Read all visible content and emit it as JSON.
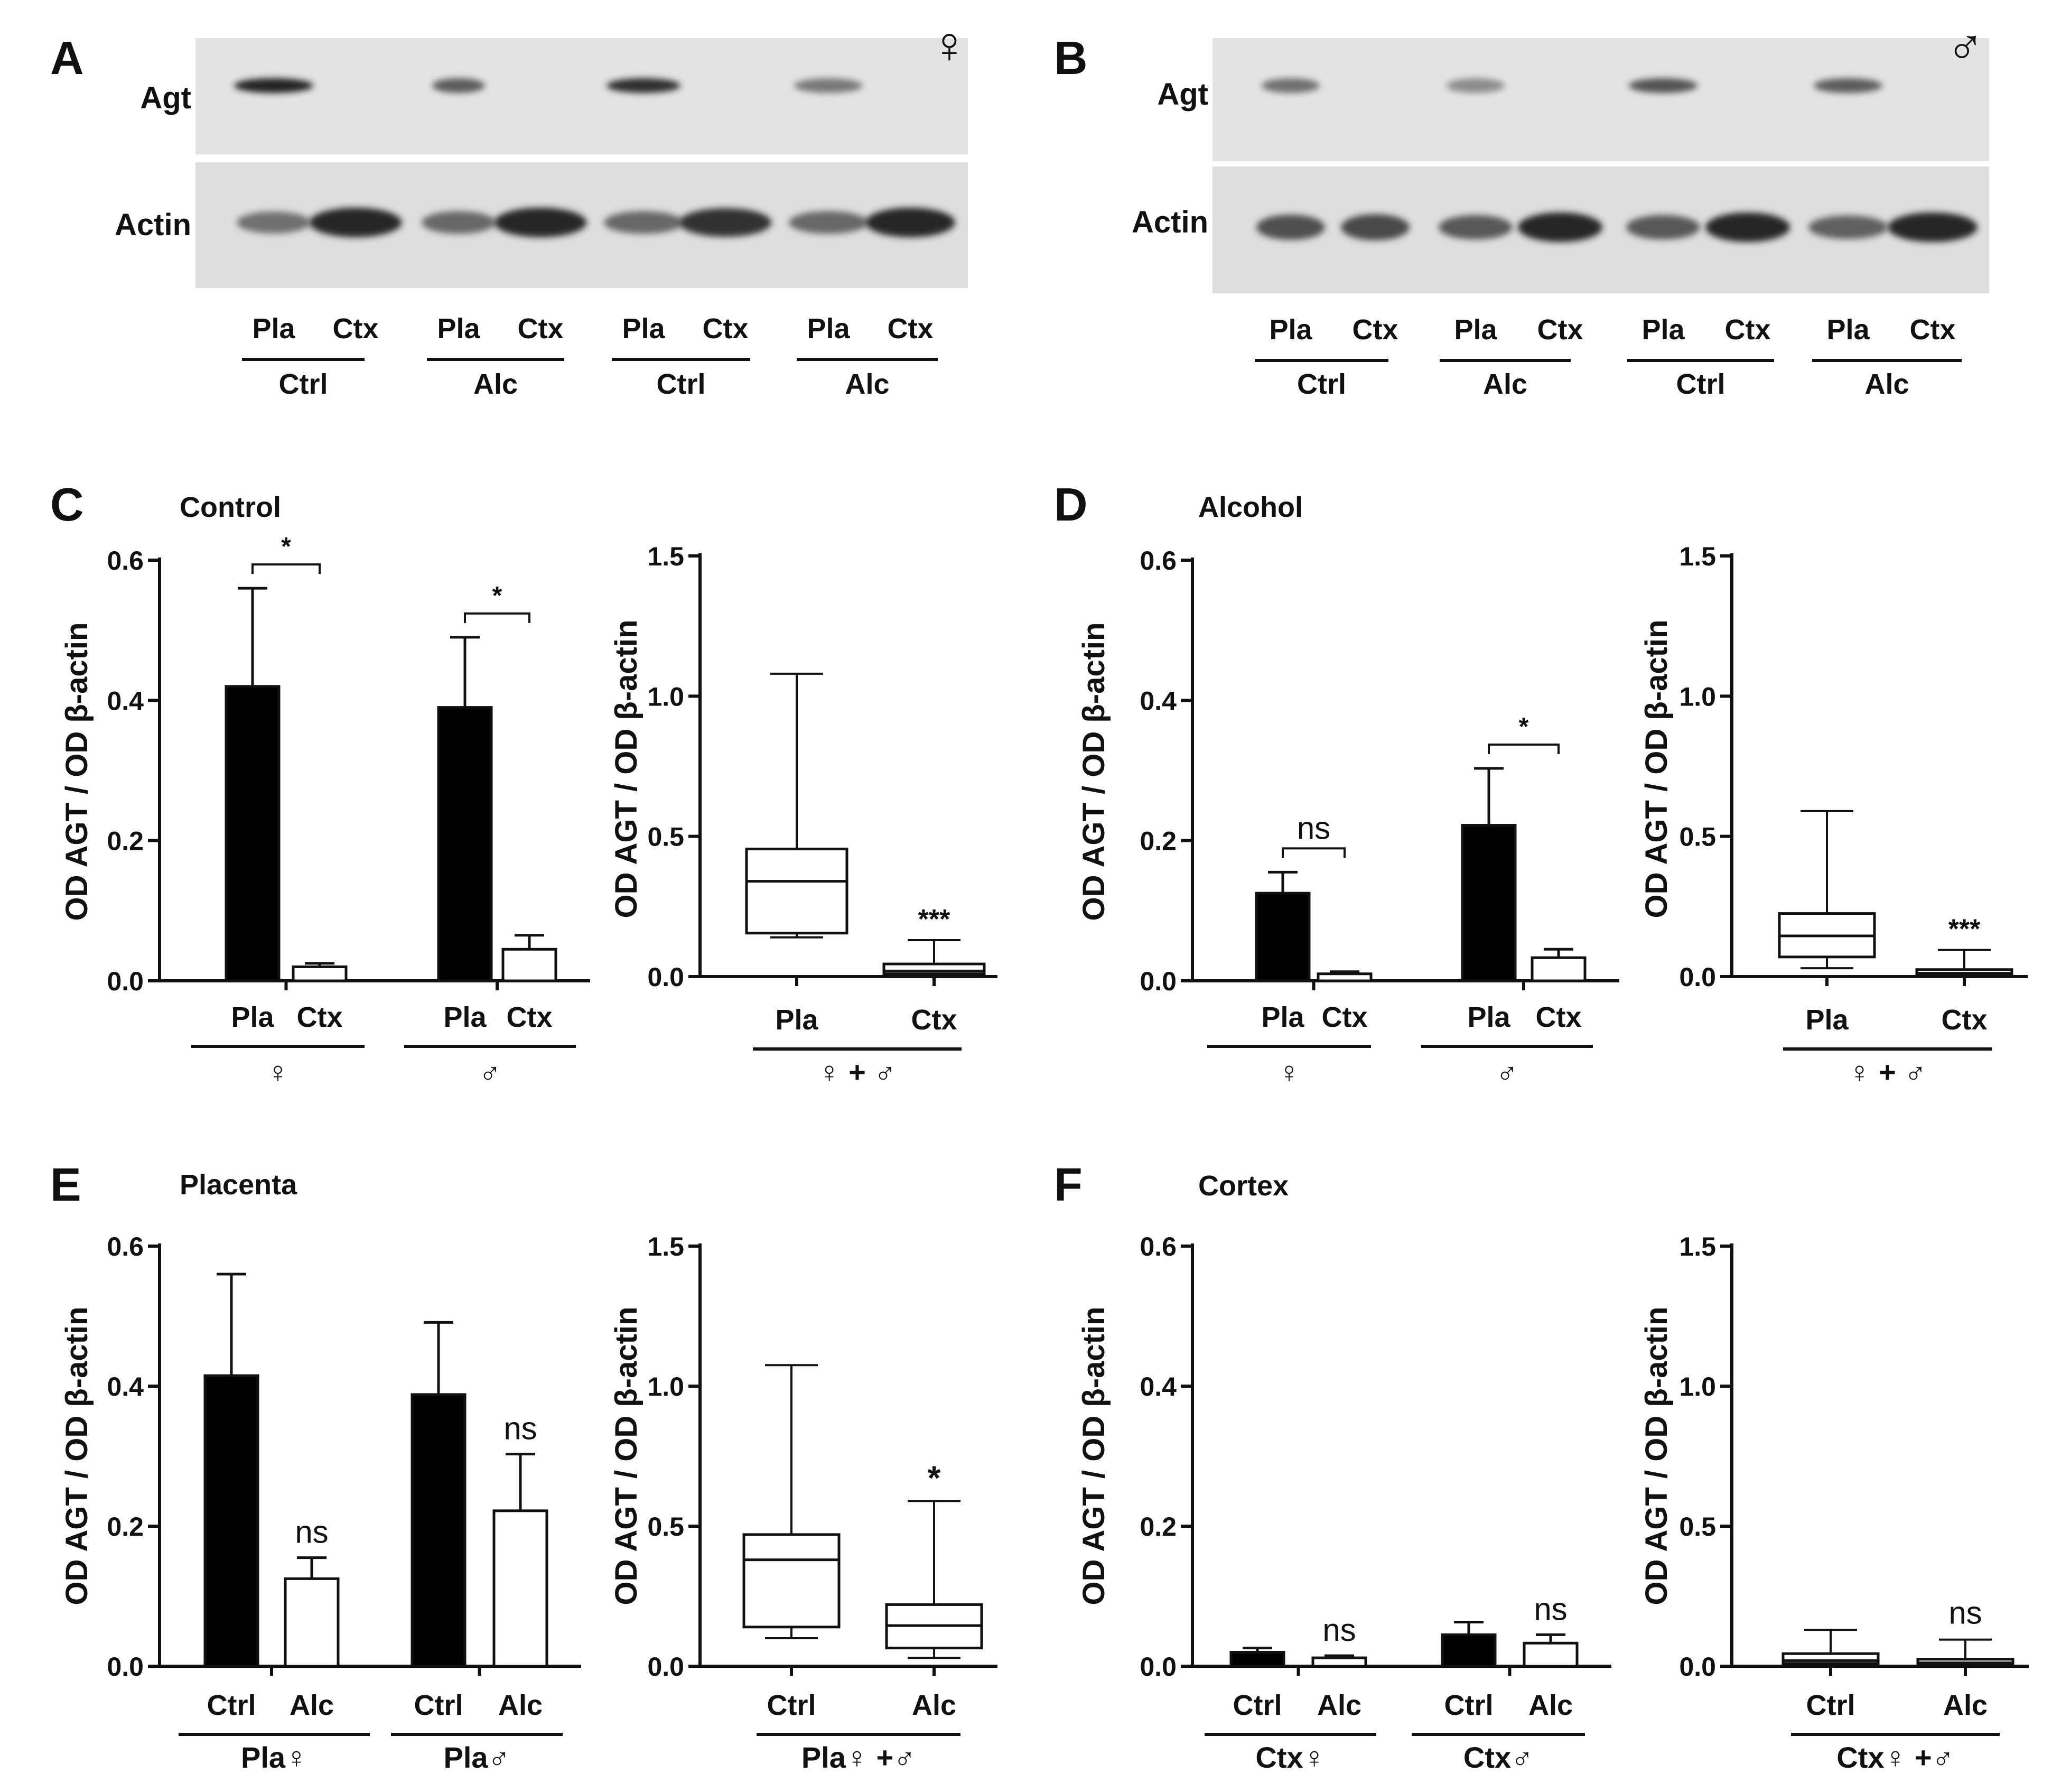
{
  "panels": [
    {
      "letter": "A",
      "title": "♀"
    },
    {
      "letter": "B",
      "title": "♂"
    },
    {
      "letter": "C",
      "title": "Control"
    },
    {
      "letter": "D",
      "title": "Alcohol"
    },
    {
      "letter": "E",
      "title": "Placenta"
    },
    {
      "letter": "F",
      "title": "Cortex"
    }
  ],
  "blots": [
    {
      "panel": "A",
      "sex": "♀",
      "row_labels": [
        "Agt",
        "Actin"
      ],
      "lanes": [
        "Pla",
        "Ctx",
        "Pla",
        "Ctx",
        "Pla",
        "Ctx",
        "Pla",
        "Ctx"
      ],
      "groups": [
        "Ctrl",
        "Alc",
        "Ctrl",
        "Alc"
      ]
    },
    {
      "panel": "B",
      "sex": "♂",
      "row_labels": [
        "Agt",
        "Actin"
      ],
      "lanes": [
        "Pla",
        "Ctx",
        "Pla",
        "Ctx",
        "Pla",
        "Ctx",
        "Pla",
        "Ctx"
      ],
      "groups": [
        "Ctrl",
        "Alc",
        "Ctrl",
        "Alc"
      ]
    }
  ],
  "chart_data": [
    {
      "panel": "C",
      "type": "bar",
      "title": "Control",
      "ylabel": "OD AGT / OD β-actin",
      "ylim": [
        0,
        0.6
      ],
      "yticks": [
        "0.0",
        "0.2",
        "0.4",
        "0.6"
      ],
      "categories": [
        "Pla",
        "Ctx",
        "Pla",
        "Ctx"
      ],
      "group_labels": [
        "♀",
        "♂"
      ],
      "values": [
        0.42,
        0.02,
        0.39,
        0.045
      ],
      "errors": [
        0.14,
        0.005,
        0.1,
        0.02
      ],
      "fills": [
        "#000000",
        "#ffffff",
        "#000000",
        "#ffffff"
      ],
      "annotations": [
        {
          "between": [
            0,
            1
          ],
          "text": "*"
        },
        {
          "between": [
            2,
            3
          ],
          "text": "*"
        }
      ]
    },
    {
      "panel": "C",
      "type": "box",
      "ylabel": "OD AGT / OD β-actin",
      "ylim": [
        0,
        1.5
      ],
      "yticks": [
        "0.0",
        "0.5",
        "1.0",
        "1.5"
      ],
      "categories": [
        "Pla",
        "Ctx"
      ],
      "group_label": "♀ + ♂",
      "boxes": [
        {
          "min": 0.14,
          "q1": 0.155,
          "median": 0.34,
          "q3": 0.455,
          "max": 1.08
        },
        {
          "min": 0.0,
          "q1": 0.01,
          "median": 0.02,
          "q3": 0.045,
          "max": 0.13
        }
      ],
      "annotations": [
        {
          "index": 1,
          "text": "***"
        }
      ]
    },
    {
      "panel": "D",
      "type": "bar",
      "title": "Alcohol",
      "ylabel": "OD AGT / OD β-actin",
      "ylim": [
        0,
        0.6
      ],
      "yticks": [
        "0.0",
        "0.2",
        "0.4",
        "0.6"
      ],
      "categories": [
        "Pla",
        "Ctx",
        "Pla",
        "Ctx"
      ],
      "group_labels": [
        "♀",
        "♂"
      ],
      "values": [
        0.125,
        0.01,
        0.222,
        0.033
      ],
      "errors": [
        0.03,
        0.003,
        0.081,
        0.012
      ],
      "fills": [
        "#000000",
        "#ffffff",
        "#000000",
        "#ffffff"
      ],
      "annotations": [
        {
          "between": [
            0,
            1
          ],
          "text": "ns"
        },
        {
          "between": [
            2,
            3
          ],
          "text": "*"
        }
      ]
    },
    {
      "panel": "D",
      "type": "box",
      "ylabel": "OD AGT / OD β-actin",
      "ylim": [
        0,
        1.5
      ],
      "yticks": [
        "0.0",
        "0.5",
        "1.0",
        "1.5"
      ],
      "categories": [
        "Pla",
        "Ctx"
      ],
      "group_label": "♀ + ♂",
      "boxes": [
        {
          "min": 0.03,
          "q1": 0.07,
          "median": 0.145,
          "q3": 0.225,
          "max": 0.59
        },
        {
          "min": 0.0,
          "q1": 0.005,
          "median": 0.012,
          "q3": 0.025,
          "max": 0.095
        }
      ],
      "annotations": [
        {
          "index": 1,
          "text": "***"
        }
      ]
    },
    {
      "panel": "E",
      "type": "bar",
      "title": "Placenta",
      "ylabel": "OD AGT / OD β-actin",
      "ylim": [
        0,
        0.6
      ],
      "yticks": [
        "0.0",
        "0.2",
        "0.4",
        "0.6"
      ],
      "categories": [
        "Ctrl",
        "Alc",
        "Ctrl",
        "Alc"
      ],
      "group_labels": [
        "Pla♀",
        "Pla♂"
      ],
      "values": [
        0.415,
        0.125,
        0.388,
        0.222
      ],
      "errors": [
        0.145,
        0.03,
        0.103,
        0.081
      ],
      "fills": [
        "#000000",
        "#ffffff",
        "#000000",
        "#ffffff"
      ],
      "annotations": [
        {
          "index": 1,
          "text": "ns"
        },
        {
          "index": 3,
          "text": "ns"
        }
      ]
    },
    {
      "panel": "E",
      "type": "box",
      "ylabel": "OD AGT / OD β-actin",
      "ylim": [
        0,
        1.5
      ],
      "yticks": [
        "0.0",
        "0.5",
        "1.0",
        "1.5"
      ],
      "categories": [
        "Ctrl",
        "Alc"
      ],
      "group_label": "Pla♀ +♂",
      "boxes": [
        {
          "min": 0.1,
          "q1": 0.14,
          "median": 0.38,
          "q3": 0.47,
          "max": 1.075
        },
        {
          "min": 0.03,
          "q1": 0.065,
          "median": 0.145,
          "q3": 0.22,
          "max": 0.59
        }
      ],
      "annotations": [
        {
          "index": 1,
          "text": "*"
        }
      ]
    },
    {
      "panel": "F",
      "type": "bar",
      "title": "Cortex",
      "ylabel": "OD AGT / OD β-actin",
      "ylim": [
        0,
        0.6
      ],
      "yticks": [
        "0.0",
        "0.2",
        "0.4",
        "0.6"
      ],
      "categories": [
        "Ctrl",
        "Alc",
        "Ctrl",
        "Alc"
      ],
      "group_labels": [
        "Ctx♀",
        "Ctx♂"
      ],
      "values": [
        0.02,
        0.012,
        0.045,
        0.033
      ],
      "errors": [
        0.006,
        0.003,
        0.018,
        0.012
      ],
      "fills": [
        "#000000",
        "#ffffff",
        "#000000",
        "#ffffff"
      ],
      "annotations": [
        {
          "index": 1,
          "text": "ns"
        },
        {
          "index": 3,
          "text": "ns"
        }
      ]
    },
    {
      "panel": "F",
      "type": "box",
      "ylabel": "OD AGT / OD β-actin",
      "ylim": [
        0,
        1.5
      ],
      "yticks": [
        "0.0",
        "0.5",
        "1.0",
        "1.5"
      ],
      "categories": [
        "Ctrl",
        "Alc"
      ],
      "group_label": "Ctx♀ +♂",
      "boxes": [
        {
          "min": 0.0,
          "q1": 0.01,
          "median": 0.02,
          "q3": 0.045,
          "max": 0.13
        },
        {
          "min": 0.0,
          "q1": 0.005,
          "median": 0.012,
          "q3": 0.025,
          "max": 0.095
        }
      ],
      "annotations": [
        {
          "index": 1,
          "text": "ns"
        }
      ]
    }
  ]
}
